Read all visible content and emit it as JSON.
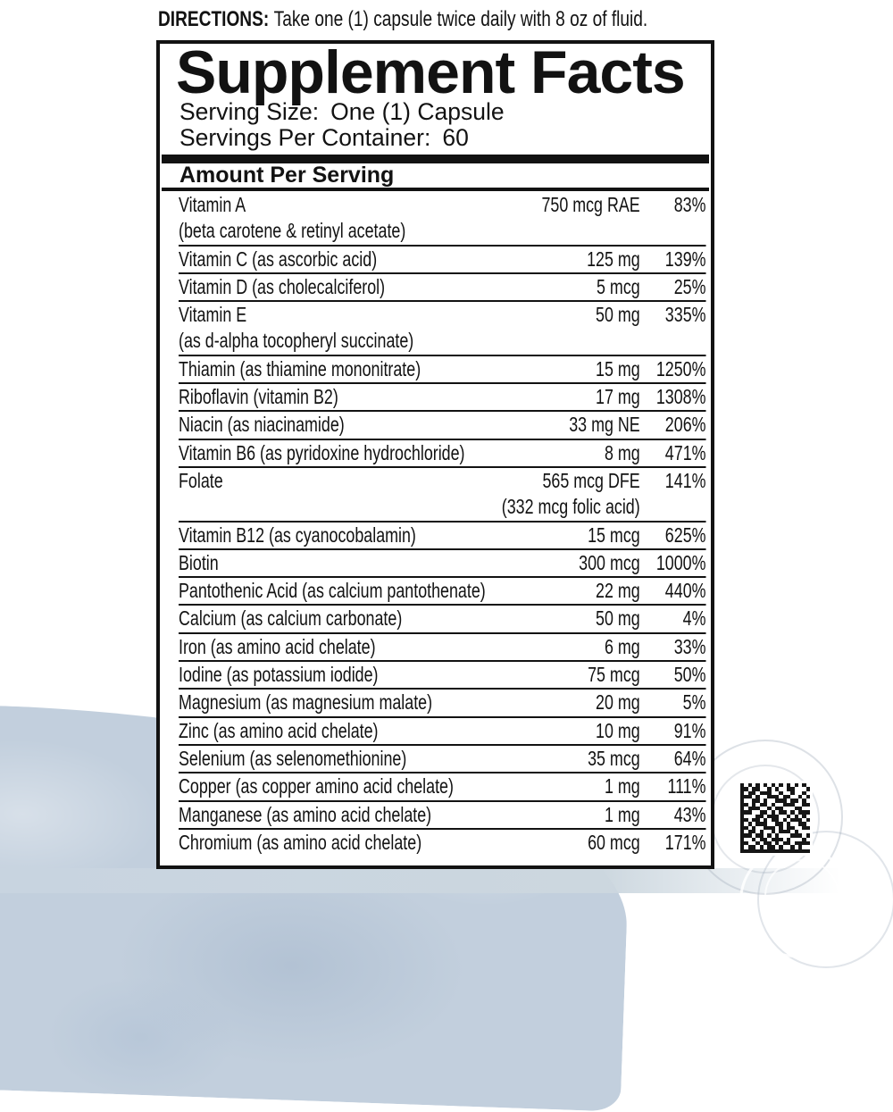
{
  "directions": {
    "label": "DIRECTIONS:",
    "text": "Take one (1) capsule twice daily with 8 oz of fluid."
  },
  "panel": {
    "title": "Supplement Facts",
    "serving_size_label": "Serving Size:",
    "serving_size_value": "One (1) Capsule",
    "servings_per_container_label": "Servings Per Container:",
    "servings_per_container_value": "60",
    "amount_header": "Amount Per Serving",
    "rows": [
      {
        "name": "Vitamin A",
        "sub": "(beta carotene & retinyl acetate)",
        "sub_align": "left",
        "amount": "750 mcg RAE",
        "dv": "83%"
      },
      {
        "name": "Vitamin C (as ascorbic acid)",
        "amount": "125 mg",
        "dv": "139%"
      },
      {
        "name": "Vitamin D (as cholecalciferol)",
        "amount": "5 mcg",
        "dv": "25%"
      },
      {
        "name": "Vitamin E",
        "sub": "(as d-alpha tocopheryl succinate)",
        "sub_align": "left",
        "amount": "50 mg",
        "dv": "335%"
      },
      {
        "name": "Thiamin (as thiamine mononitrate)",
        "amount": "15 mg",
        "dv": "1250%"
      },
      {
        "name": "Riboflavin (vitamin B2)",
        "amount": "17 mg",
        "dv": "1308%"
      },
      {
        "name": "Niacin (as niacinamide)",
        "amount": "33 mg NE",
        "dv": "206%"
      },
      {
        "name": "Vitamin B6 (as pyridoxine hydrochloride)",
        "amount": "8 mg",
        "dv": "471%"
      },
      {
        "name": "Folate",
        "sub": "(332 mcg folic acid)",
        "sub_align": "right",
        "amount": "565 mcg DFE",
        "dv": "141%"
      },
      {
        "name": "Vitamin B12 (as cyanocobalamin)",
        "amount": "15 mcg",
        "dv": "625%"
      },
      {
        "name": "Biotin",
        "amount": "300 mcg",
        "dv": "1000%"
      },
      {
        "name": "Pantothenic Acid (as calcium pantothenate)",
        "amount": "22 mg",
        "dv": "440%"
      },
      {
        "name": "Calcium (as calcium carbonate)",
        "amount": "50 mg",
        "dv": "4%"
      },
      {
        "name": "Iron (as amino acid chelate)",
        "amount": "6 mg",
        "dv": "33%"
      },
      {
        "name": "Iodine (as potassium iodide)",
        "amount": "75 mcg",
        "dv": "50%"
      },
      {
        "name": "Magnesium (as magnesium malate)",
        "amount": "20 mg",
        "dv": "5%"
      },
      {
        "name": "Zinc (as amino acid chelate)",
        "amount": "10 mg",
        "dv": "91%"
      },
      {
        "name": "Selenium (as selenomethionine)",
        "amount": "35 mcg",
        "dv": "64%"
      },
      {
        "name": "Copper (as copper amino acid chelate)",
        "amount": "1 mg",
        "dv": "111%"
      },
      {
        "name": "Manganese (as amino acid chelate)",
        "amount": "1 mg",
        "dv": "43%"
      },
      {
        "name": "Chromium (as amino acid chelate)",
        "amount": "60 mcg",
        "dv": "171%"
      }
    ]
  },
  "barcode": {
    "type": "data-matrix",
    "matrix": [
      "101010101010101010",
      "110110010100110001",
      "101101110010010010",
      "111010011101100101",
      "100110100111011010",
      "110101101001110011",
      "101110010110001100",
      "111001101011010111",
      "100011011100101010",
      "110110101101011101",
      "101011100110100110",
      "110100111010110011",
      "101101001011101000",
      "111011010100011101",
      "100101101110100010",
      "110010110101101111",
      "101101011010010100",
      "111111111111111111"
    ]
  },
  "colors": {
    "ink": "#121212",
    "wash_blue": "#c2cfdd",
    "wash_band": "#ccd7df",
    "swirl_gray": "#a5b0be"
  }
}
